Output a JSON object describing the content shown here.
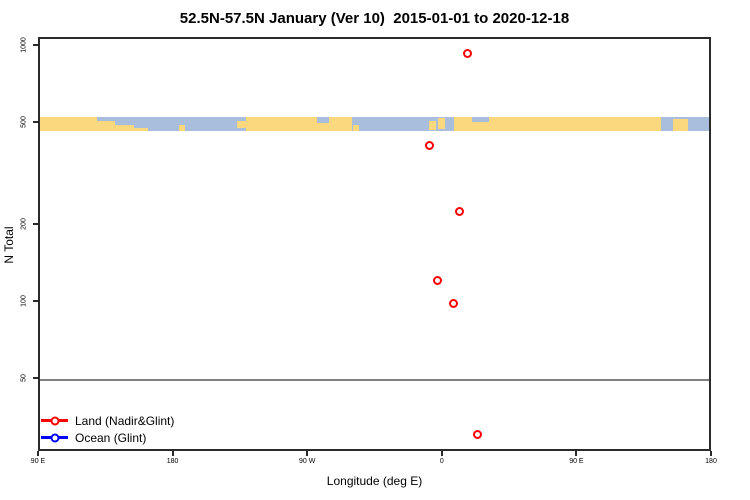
{
  "title": "52.5N-57.5N January (Ver 10)  2015-01-01 to 2020-12-18",
  "chart_data": {
    "type": "scatter",
    "title": "52.5N-57.5N January (Ver 10)  2015-01-01 to 2020-12-18",
    "xlabel": "Longitude (deg E)",
    "ylabel": "N Total",
    "x_axis": {
      "description": "longitude axis spanning 450 degrees eastward from 90E",
      "tick_offsets_deg": [
        0,
        90,
        180,
        270,
        360,
        450
      ],
      "tick_labels": [
        "90 E",
        "180",
        "90 W",
        "0",
        "90 E",
        "180"
      ]
    },
    "y_axis": {
      "scale": "log",
      "tick_values": [
        1000,
        500,
        200,
        100,
        50
      ],
      "tick_labels": [
        "1000",
        "500",
        "200",
        "100",
        "50"
      ],
      "range": [
        26,
        1075
      ]
    },
    "grid": "off",
    "legend_position": "bottom-left",
    "series": [
      {
        "name": "Land (Nadir&Glint)",
        "color": "#ff0000",
        "marker": "open-circle",
        "points": [
          {
            "lon": 17,
            "n": 925
          },
          {
            "lon": -8,
            "n": 405
          },
          {
            "lon": 12,
            "n": 223
          },
          {
            "lon": -3,
            "n": 120
          },
          {
            "lon": 8,
            "n": 98
          },
          {
            "lon": 24,
            "n": 30
          }
        ]
      },
      {
        "name": "Ocean (Glint)",
        "color": "#0000ff",
        "marker": "open-circle",
        "points": []
      }
    ],
    "reference_line": {
      "n": 50,
      "color": "#808080"
    },
    "map_band": {
      "description": "world coastline strip for 52.5N-57.5N drawn at N=500",
      "n_center": 500,
      "ocean_color": "#a9bedd",
      "land_color": "#fbd77e",
      "patches": [
        {
          "o0": 0,
          "o1": 38,
          "t": 0,
          "b": 1,
          "type": "land"
        },
        {
          "o0": 38,
          "o1": 50,
          "t": 0.3,
          "b": 1,
          "type": "land"
        },
        {
          "o0": 50,
          "o1": 63,
          "t": 0.6,
          "b": 1,
          "type": "land"
        },
        {
          "o0": 63,
          "o1": 72,
          "t": 0.8,
          "b": 1,
          "type": "land"
        },
        {
          "o0": 93,
          "o1": 97,
          "t": 0.55,
          "b": 1,
          "type": "land"
        },
        {
          "o0": 132,
          "o1": 138,
          "t": 0.25,
          "b": 0.8,
          "type": "land"
        },
        {
          "o0": 138,
          "o1": 185,
          "t": 0,
          "b": 1,
          "type": "land"
        },
        {
          "o0": 185,
          "o1": 193,
          "t": 0.45,
          "b": 1,
          "type": "land"
        },
        {
          "o0": 193,
          "o1": 209,
          "t": 0,
          "b": 1,
          "type": "land"
        },
        {
          "o0": 209,
          "o1": 213,
          "t": 0.6,
          "b": 1,
          "type": "land"
        },
        {
          "o0": 260,
          "o1": 265,
          "t": 0.3,
          "b": 0.95,
          "type": "land"
        },
        {
          "o0": 266,
          "o1": 271,
          "t": 0.1,
          "b": 0.85,
          "type": "land"
        },
        {
          "o0": 277,
          "o1": 415,
          "t": 0,
          "b": 1,
          "type": "land"
        },
        {
          "o0": 289,
          "o1": 300,
          "t": 0,
          "b": 0.35,
          "type": "ocean"
        },
        {
          "o0": 423,
          "o1": 433,
          "t": 0.15,
          "b": 1,
          "type": "land"
        }
      ]
    }
  },
  "legend": {
    "items": [
      {
        "label": "Land (Nadir&Glint)",
        "color": "#ff0000"
      },
      {
        "label": "Ocean (Glint)",
        "color": "#0000ff"
      }
    ]
  }
}
